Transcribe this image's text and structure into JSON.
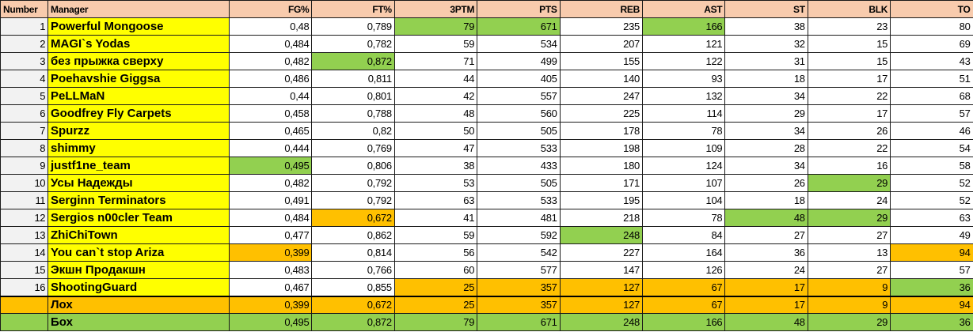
{
  "columns": [
    "Number",
    "Manager",
    "FG%",
    "FT%",
    "3PTM",
    "PTS",
    "REB",
    "AST",
    "ST",
    "BLK",
    "TO"
  ],
  "colors": {
    "best": "#92d050",
    "worst": "#ffc000",
    "manager_bg": "#ffff00",
    "header_bg": "#f8cbad"
  },
  "rows": [
    {
      "number": "1",
      "manager": "Powerful Mongoose",
      "values": [
        "0,48",
        "0,789",
        "79",
        "671",
        "235",
        "166",
        "38",
        "23",
        "80"
      ],
      "hl": [
        "",
        "",
        "best",
        "best",
        "",
        "best",
        "",
        "",
        ""
      ]
    },
    {
      "number": "2",
      "manager": "MAGI`s Yodas",
      "values": [
        "0,484",
        "0,782",
        "59",
        "534",
        "207",
        "121",
        "32",
        "15",
        "69"
      ],
      "hl": [
        "",
        "",
        "",
        "",
        "",
        "",
        "",
        "",
        ""
      ]
    },
    {
      "number": "3",
      "manager": "без прыжка сверху",
      "values": [
        "0,482",
        "0,872",
        "71",
        "499",
        "155",
        "122",
        "31",
        "15",
        "43"
      ],
      "hl": [
        "",
        "best",
        "",
        "",
        "",
        "",
        "",
        "",
        ""
      ]
    },
    {
      "number": "4",
      "manager": "Poehavshie Giggsa",
      "values": [
        "0,486",
        "0,811",
        "44",
        "405",
        "140",
        "93",
        "18",
        "17",
        "51"
      ],
      "hl": [
        "",
        "",
        "",
        "",
        "",
        "",
        "",
        "",
        ""
      ]
    },
    {
      "number": "5",
      "manager": "PeLLMaN",
      "values": [
        "0,44",
        "0,801",
        "42",
        "557",
        "247",
        "132",
        "34",
        "22",
        "68"
      ],
      "hl": [
        "",
        "",
        "",
        "",
        "",
        "",
        "",
        "",
        ""
      ]
    },
    {
      "number": "6",
      "manager": "Goodfrey Fly Carpets",
      "values": [
        "0,458",
        "0,788",
        "48",
        "560",
        "225",
        "114",
        "29",
        "17",
        "57"
      ],
      "hl": [
        "",
        "",
        "",
        "",
        "",
        "",
        "",
        "",
        ""
      ]
    },
    {
      "number": "7",
      "manager": "Spurzz",
      "values": [
        "0,465",
        "0,82",
        "50",
        "505",
        "178",
        "78",
        "34",
        "26",
        "46"
      ],
      "hl": [
        "",
        "",
        "",
        "",
        "",
        "",
        "",
        "",
        ""
      ]
    },
    {
      "number": "8",
      "manager": "shimmy",
      "values": [
        "0,444",
        "0,769",
        "47",
        "533",
        "198",
        "109",
        "28",
        "22",
        "54"
      ],
      "hl": [
        "",
        "",
        "",
        "",
        "",
        "",
        "",
        "",
        ""
      ]
    },
    {
      "number": "9",
      "manager": "justf1ne_team",
      "values": [
        "0,495",
        "0,806",
        "38",
        "433",
        "180",
        "124",
        "34",
        "16",
        "58"
      ],
      "hl": [
        "best",
        "",
        "",
        "",
        "",
        "",
        "",
        "",
        ""
      ]
    },
    {
      "number": "10",
      "manager": "Усы Надежды",
      "values": [
        "0,482",
        "0,792",
        "53",
        "505",
        "171",
        "107",
        "26",
        "29",
        "52"
      ],
      "hl": [
        "",
        "",
        "",
        "",
        "",
        "",
        "",
        "best",
        ""
      ]
    },
    {
      "number": "11",
      "manager": "Serginn Terminators",
      "values": [
        "0,491",
        "0,792",
        "63",
        "533",
        "195",
        "104",
        "18",
        "24",
        "52"
      ],
      "hl": [
        "",
        "",
        "",
        "",
        "",
        "",
        "",
        "",
        ""
      ]
    },
    {
      "number": "12",
      "manager": "Sergios n00cler Team",
      "values": [
        "0,484",
        "0,672",
        "41",
        "481",
        "218",
        "78",
        "48",
        "29",
        "63"
      ],
      "hl": [
        "",
        "worst",
        "",
        "",
        "",
        "",
        "best",
        "best",
        ""
      ]
    },
    {
      "number": "13",
      "manager": "ZhiChiTown",
      "values": [
        "0,477",
        "0,862",
        "59",
        "592",
        "248",
        "84",
        "27",
        "27",
        "49"
      ],
      "hl": [
        "",
        "",
        "",
        "",
        "best",
        "",
        "",
        "",
        ""
      ]
    },
    {
      "number": "14",
      "manager": "You can`t stop Ariza",
      "values": [
        "0,399",
        "0,814",
        "56",
        "542",
        "227",
        "164",
        "36",
        "13",
        "94"
      ],
      "hl": [
        "worst",
        "",
        "",
        "",
        "",
        "",
        "",
        "",
        "worst"
      ]
    },
    {
      "number": "15",
      "manager": "Экшн Продакшн",
      "values": [
        "0,483",
        "0,766",
        "60",
        "577",
        "147",
        "126",
        "24",
        "27",
        "57"
      ],
      "hl": [
        "",
        "",
        "",
        "",
        "",
        "",
        "",
        "",
        ""
      ]
    },
    {
      "number": "16",
      "manager": "ShootingGuard",
      "values": [
        "0,467",
        "0,855",
        "25",
        "357",
        "127",
        "67",
        "17",
        "9",
        "36"
      ],
      "hl": [
        "",
        "",
        "worst",
        "worst",
        "worst",
        "worst",
        "worst",
        "worst",
        "best"
      ]
    }
  ],
  "summary": [
    {
      "label": "Лох",
      "kind": "worst",
      "values": [
        "0,399",
        "0,672",
        "25",
        "357",
        "127",
        "67",
        "17",
        "9",
        "94"
      ]
    },
    {
      "label": "Бох",
      "kind": "best",
      "values": [
        "0,495",
        "0,872",
        "79",
        "671",
        "248",
        "166",
        "48",
        "29",
        "36"
      ]
    }
  ]
}
